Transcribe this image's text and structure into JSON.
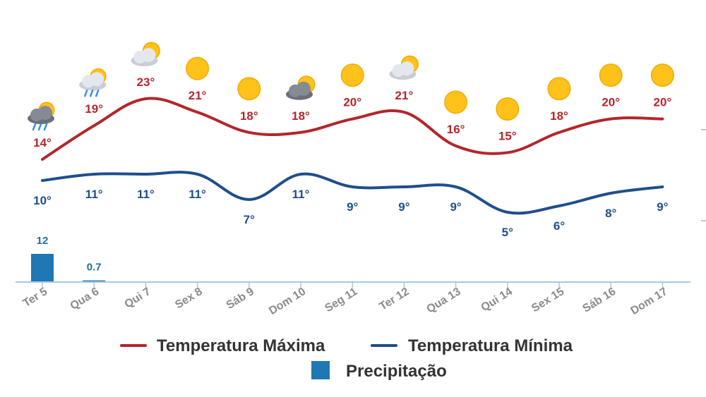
{
  "chart_data": {
    "type": "line",
    "categories": [
      "Ter 5",
      "Qua 6",
      "Qui 7",
      "Sex 8",
      "Sáb 9",
      "Dom 10",
      "Seg 11",
      "Ter 12",
      "Qua 13",
      "Qui 14",
      "Sex 15",
      "Sáb 16",
      "Dom 17"
    ],
    "series": [
      {
        "name": "Temperatura Máxima",
        "type": "line",
        "color": "#b3262b",
        "values": [
          14,
          19,
          23,
          21,
          18,
          18,
          20,
          21,
          16,
          15,
          18,
          20,
          20
        ],
        "labels": [
          "14°",
          "19°",
          "23°",
          "21°",
          "18°",
          "18°",
          "20°",
          "21°",
          "16°",
          "15°",
          "18°",
          "20°",
          "20°"
        ]
      },
      {
        "name": "Temperatura Mínima",
        "type": "line",
        "color": "#1f4e8c",
        "values": [
          10,
          11,
          11,
          11,
          7,
          11,
          9,
          9,
          9,
          5,
          6,
          8,
          9
        ],
        "labels": [
          "10°",
          "11°",
          "11°",
          "11°",
          "7°",
          "11°",
          "9°",
          "9°",
          "9°",
          "5°",
          "6°",
          "8°",
          "9°"
        ]
      },
      {
        "name": "Precipitação",
        "type": "bar",
        "color": "#1f77b4",
        "values": [
          12,
          0.7,
          null,
          null,
          null,
          null,
          null,
          null,
          null,
          null,
          null,
          null,
          null
        ],
        "labels": [
          "12",
          "0.7",
          "",
          "",
          "",
          "",
          "",
          "",
          "",
          "",
          "",
          "",
          ""
        ]
      }
    ],
    "weather_icons": [
      "rain-cloud-sun-icon",
      "rain-cloud-sun-icon",
      "cloud-sun-icon",
      "sun-icon",
      "sun-icon",
      "cloud-sun-icon",
      "sun-icon",
      "cloud-sun-icon",
      "sun-icon",
      "sun-icon",
      "sun-icon",
      "sun-icon",
      "sun-icon"
    ],
    "legend": {
      "position": "bottom",
      "items": [
        {
          "label": "Temperatura Máxima",
          "color": "#b3262b",
          "kind": "line"
        },
        {
          "label": "Temperatura Mínima",
          "color": "#1f4e8c",
          "kind": "line"
        },
        {
          "label": "Precipitação",
          "color": "#1f77b4",
          "kind": "square"
        }
      ]
    },
    "grid": false
  }
}
